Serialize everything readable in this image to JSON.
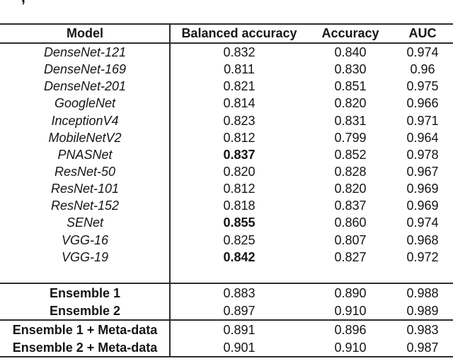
{
  "caption_fragment": ",",
  "colors": {
    "line": "#2d2d2d",
    "text": "#151515",
    "background": "#ffffff"
  },
  "chart_data": {
    "type": "table",
    "title": "",
    "columns": [
      "Model",
      "Balanced accuracy",
      "Accuracy",
      "AUC"
    ],
    "groups": [
      {
        "name": "individual-models",
        "model_style": "italic",
        "rows": [
          {
            "model": "DenseNet-121",
            "balanced_accuracy": "0.832",
            "accuracy": "0.840",
            "auc": "0.974",
            "bold_balanced": false
          },
          {
            "model": "DenseNet-169",
            "balanced_accuracy": "0.811",
            "accuracy": "0.830",
            "auc": "0.96",
            "bold_balanced": false
          },
          {
            "model": "DenseNet-201",
            "balanced_accuracy": "0.821",
            "accuracy": "0.851",
            "auc": "0.975",
            "bold_balanced": false
          },
          {
            "model": "GoogleNet",
            "balanced_accuracy": "0.814",
            "accuracy": "0.820",
            "auc": "0.966",
            "bold_balanced": false
          },
          {
            "model": "InceptionV4",
            "balanced_accuracy": "0.823",
            "accuracy": "0.831",
            "auc": "0.971",
            "bold_balanced": false
          },
          {
            "model": "MobileNetV2",
            "balanced_accuracy": "0.812",
            "accuracy": "0.799",
            "auc": "0.964",
            "bold_balanced": false
          },
          {
            "model": "PNASNet",
            "balanced_accuracy": "0.837",
            "accuracy": "0.852",
            "auc": "0.978",
            "bold_balanced": true
          },
          {
            "model": "ResNet-50",
            "balanced_accuracy": "0.820",
            "accuracy": "0.828",
            "auc": "0.967",
            "bold_balanced": false
          },
          {
            "model": "ResNet-101",
            "balanced_accuracy": "0.812",
            "accuracy": "0.820",
            "auc": "0.969",
            "bold_balanced": false
          },
          {
            "model": "ResNet-152",
            "balanced_accuracy": "0.818",
            "accuracy": "0.837",
            "auc": "0.969",
            "bold_balanced": false
          },
          {
            "model": "SENet",
            "balanced_accuracy": "0.855",
            "accuracy": "0.860",
            "auc": "0.974",
            "bold_balanced": true
          },
          {
            "model": "VGG-16",
            "balanced_accuracy": "0.825",
            "accuracy": "0.807",
            "auc": "0.968",
            "bold_balanced": false
          },
          {
            "model": "VGG-19",
            "balanced_accuracy": "0.842",
            "accuracy": "0.827",
            "auc": "0.972",
            "bold_balanced": true
          }
        ]
      },
      {
        "name": "ensembles",
        "model_style": "bold",
        "rows": [
          {
            "model": "Ensemble 1",
            "balanced_accuracy": "0.883",
            "accuracy": "0.890",
            "auc": "0.988",
            "bold_balanced": false
          },
          {
            "model": "Ensemble 2",
            "balanced_accuracy": "0.897",
            "accuracy": "0.910",
            "auc": "0.989",
            "bold_balanced": false
          }
        ]
      },
      {
        "name": "ensembles-meta-data",
        "model_style": "bold",
        "rows": [
          {
            "model": "Ensemble 1 + Meta-data",
            "balanced_accuracy": "0.891",
            "accuracy": "0.896",
            "auc": "0.983",
            "bold_balanced": false
          },
          {
            "model": "Ensemble 2 + Meta-data",
            "balanced_accuracy": "0.901",
            "accuracy": "0.910",
            "auc": "0.987",
            "bold_balanced": false
          }
        ]
      }
    ]
  }
}
